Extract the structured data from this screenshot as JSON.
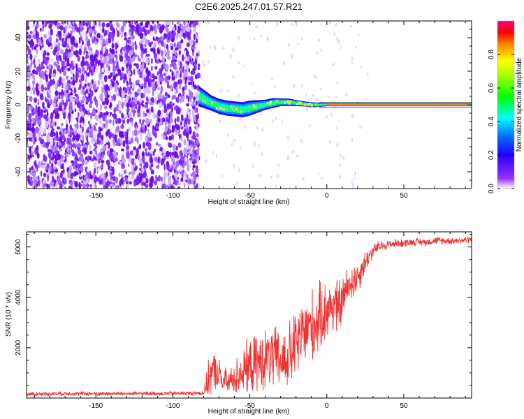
{
  "figure_title": "C2E6.2025.247.01.57.R21",
  "chart_data": [
    {
      "type": "heatmap",
      "title": "C2E6.2025.247.01.57.R21",
      "xlabel": "Height of straight line (km)",
      "ylabel": "Frequency (Hz)",
      "xlim": [
        -195,
        94
      ],
      "ylim": [
        -50,
        50
      ],
      "xticks": [
        -150,
        -100,
        -50,
        0,
        50
      ],
      "xtick_labels": [
        "-150",
        "-100",
        "-50",
        "0",
        "50"
      ],
      "yticks": [
        -40,
        -20,
        0,
        20,
        40
      ],
      "ytick_labels": [
        "-40",
        "-20",
        "0",
        "20",
        "40"
      ],
      "noise_region_x": [
        -195,
        -83
      ],
      "signal_region_x": [
        -83,
        94
      ],
      "signal_band": {
        "x": [
          -83,
          -75,
          -70,
          -65,
          -60,
          -55,
          -50,
          -45,
          -40,
          -35,
          -30,
          -25,
          -20,
          -15,
          -10,
          -5,
          0,
          20,
          50,
          94
        ],
        "center_hz": [
          5,
          1,
          -1,
          -2,
          -2.5,
          -3,
          -2,
          -1,
          0,
          1,
          1.5,
          1.5,
          1,
          0.5,
          0,
          0,
          0,
          0,
          0,
          0
        ],
        "halfwidth_hz": [
          4,
          3,
          3,
          3,
          3,
          3,
          3,
          2.5,
          2,
          2,
          1.5,
          1.5,
          1.2,
          1,
          1,
          0.8,
          0.6,
          0.6,
          0.6,
          0.6
        ]
      },
      "colorbar": {
        "label": "Normalized spectral amplitude",
        "range": [
          0,
          1
        ],
        "ticks": [
          0.0,
          0.2,
          0.4,
          0.6,
          0.8
        ],
        "tick_labels": [
          "0.0",
          "0.2",
          "0.4",
          "0.6",
          "0.8"
        ],
        "colors": [
          "#ffffff",
          "#7b00ff",
          "#0000ff",
          "#00ffff",
          "#00ff00",
          "#ffff00",
          "#ff0000",
          "#ff0080"
        ]
      }
    },
    {
      "type": "line",
      "title": "",
      "xlabel": "Height of straight line (km)",
      "ylabel": "SNR (10 * v/v)",
      "xlim": [
        -195,
        94
      ],
      "ylim": [
        0,
        6600
      ],
      "xticks": [
        -150,
        -100,
        -50,
        0,
        50
      ],
      "xtick_labels": [
        "-150",
        "-100",
        "-50",
        "0",
        "50"
      ],
      "yticks": [
        2000,
        4000,
        6000
      ],
      "ytick_labels": [
        "2000",
        "4000",
        "6000"
      ],
      "series": [
        {
          "name": "SNR",
          "color": "#ee3333",
          "x": [
            -195,
            -170,
            -140,
            -110,
            -90,
            -80,
            -76,
            -72,
            -68,
            -64,
            -60,
            -56,
            -52,
            -48,
            -44,
            -40,
            -36,
            -32,
            -28,
            -24,
            -20,
            -16,
            -12,
            -8,
            -4,
            0,
            4,
            8,
            12,
            16,
            20,
            24,
            28,
            32,
            36,
            40,
            45,
            50,
            55,
            60,
            65,
            70,
            75,
            80,
            85,
            94
          ],
          "y": [
            150,
            180,
            170,
            180,
            190,
            200,
            900,
            1100,
            700,
            600,
            800,
            1000,
            1200,
            1300,
            1400,
            1500,
            1600,
            1500,
            1500,
            1700,
            2100,
            2500,
            2800,
            2900,
            3200,
            3500,
            3700,
            3600,
            4200,
            4600,
            4800,
            5300,
            5700,
            5950,
            6050,
            6100,
            6150,
            6150,
            6200,
            6200,
            6200,
            6250,
            6250,
            6250,
            6250,
            6300
          ],
          "spread": [
            100,
            100,
            100,
            100,
            100,
            120,
            1000,
            900,
            700,
            600,
            800,
            1000,
            1200,
            1300,
            1400,
            1400,
            1500,
            1500,
            1500,
            1600,
            1700,
            1700,
            1700,
            1700,
            1600,
            1500,
            1400,
            1300,
            1000,
            900,
            800,
            600,
            400,
            300,
            250,
            220,
            200,
            200,
            180,
            180,
            180,
            170,
            170,
            170,
            170,
            160
          ]
        }
      ]
    }
  ]
}
